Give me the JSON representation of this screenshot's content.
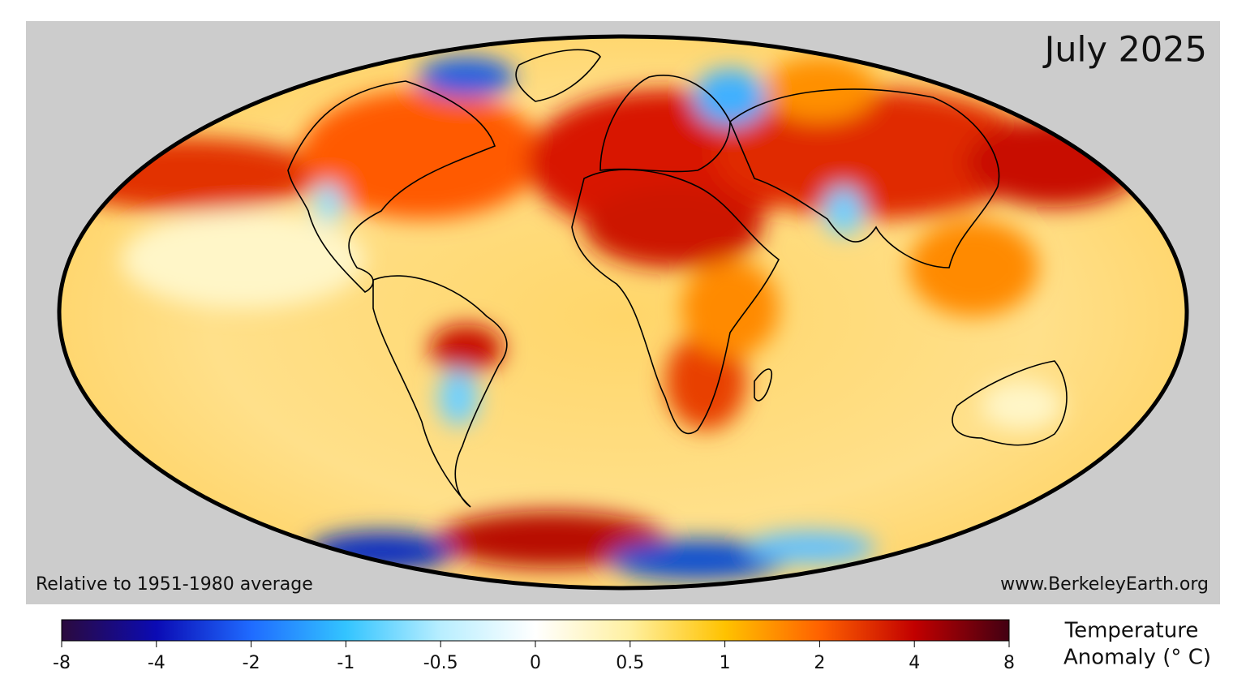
{
  "title": "July 2025",
  "note": "Relative to 1951-1980 average",
  "source": "www.BerkeleyEarth.org",
  "colorbar": {
    "label_lines": [
      "Temperature",
      "Anomaly (° C)"
    ],
    "ticks": [
      -8,
      -4,
      -2,
      -1,
      -0.5,
      0,
      0.5,
      1,
      2,
      4,
      8
    ],
    "colors": [
      "#2b0a3d",
      "#0b0bb4",
      "#1f6bff",
      "#33c4ff",
      "#b8eeff",
      "#ffffff",
      "#fff0a0",
      "#ffc200",
      "#ff6200",
      "#c20000",
      "#420012"
    ]
  }
}
